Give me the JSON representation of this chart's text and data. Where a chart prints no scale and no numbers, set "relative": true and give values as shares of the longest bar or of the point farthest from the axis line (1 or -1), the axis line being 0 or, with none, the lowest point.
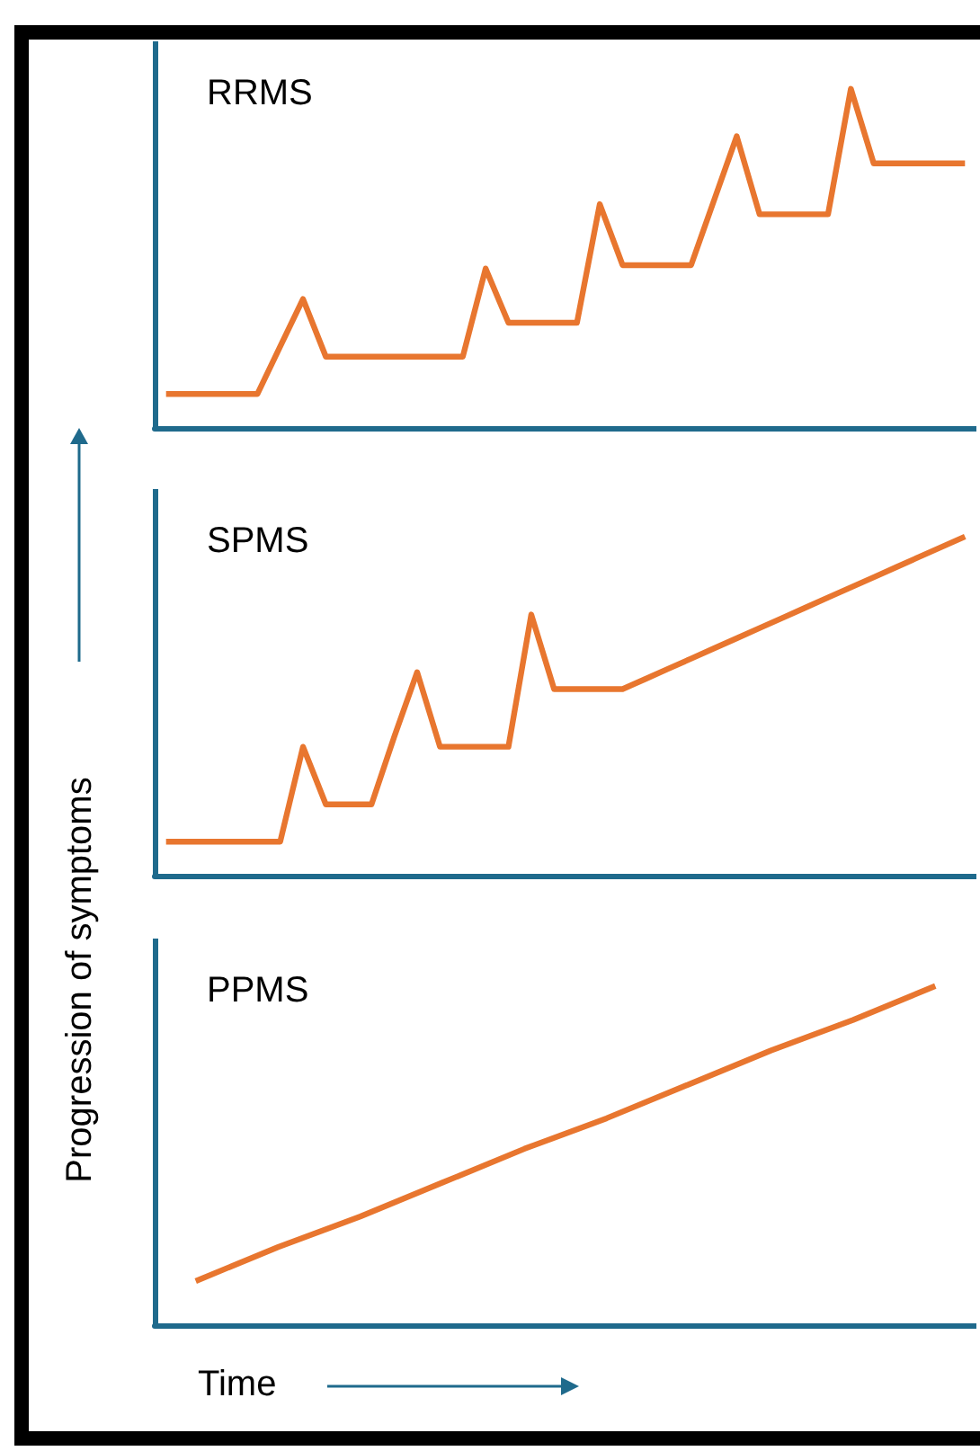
{
  "chart_data": [
    {
      "type": "line",
      "title": "RRMS",
      "relative": true,
      "tick_labels": false,
      "grid": false,
      "marker": "none",
      "line_style": "solid",
      "categories": [
        null,
        null,
        null,
        null,
        null,
        null,
        null,
        null,
        null,
        null,
        null,
        null,
        null,
        null,
        null,
        null,
        null,
        null,
        null,
        null,
        null,
        null,
        null,
        null,
        null,
        null,
        null,
        null,
        null,
        null,
        null,
        null,
        null,
        null,
        null,
        null
      ],
      "series": [
        {
          "color": "#e8762f",
          "values": [
            0.1,
            0.1,
            0.1,
            0.1,
            0.1,
            0.24,
            0.38,
            0.21,
            0.21,
            0.21,
            0.21,
            0.21,
            0.21,
            0.21,
            0.47,
            0.31,
            0.31,
            0.31,
            0.31,
            0.66,
            0.48,
            0.48,
            0.48,
            0.48,
            0.67,
            0.86,
            0.63,
            0.63,
            0.63,
            0.63,
            1.0,
            0.78,
            0.78,
            0.78,
            0.78,
            0.78
          ]
        }
      ]
    },
    {
      "type": "line",
      "title": "SPMS",
      "ylabel": "Progression of symptoms",
      "relative": true,
      "tick_labels": false,
      "grid": false,
      "marker": "none",
      "line_style": "solid",
      "categories": [
        null,
        null,
        null,
        null,
        null,
        null,
        null,
        null,
        null,
        null,
        null,
        null,
        null,
        null,
        null,
        null,
        null,
        null,
        null,
        null,
        null,
        null,
        null,
        null,
        null,
        null,
        null,
        null,
        null,
        null,
        null,
        null,
        null,
        null,
        null,
        null
      ],
      "series": [
        {
          "color": "#e8762f",
          "values": [
            0.1,
            0.1,
            0.1,
            0.1,
            0.1,
            0.1,
            0.38,
            0.21,
            0.21,
            0.21,
            0.41,
            0.6,
            0.38,
            0.38,
            0.38,
            0.38,
            0.77,
            0.55,
            0.55,
            0.55,
            0.55,
            0.58,
            0.61,
            0.64,
            0.67,
            0.7,
            0.73,
            0.76,
            0.79,
            0.82,
            0.85,
            0.88,
            0.91,
            0.94,
            0.97,
            1.0
          ]
        }
      ]
    },
    {
      "type": "line",
      "title": "PPMS",
      "xlabel": "Time",
      "relative": true,
      "tick_labels": false,
      "grid": false,
      "marker": "none",
      "line_style": "solid",
      "categories": [
        null,
        null,
        null,
        null,
        null,
        null,
        null,
        null,
        null,
        null
      ],
      "series": [
        {
          "color": "#e8762f",
          "values": [
            0.13,
            0.23,
            0.32,
            0.42,
            0.52,
            0.61,
            0.71,
            0.81,
            0.9,
            1.0
          ]
        }
      ]
    }
  ]
}
